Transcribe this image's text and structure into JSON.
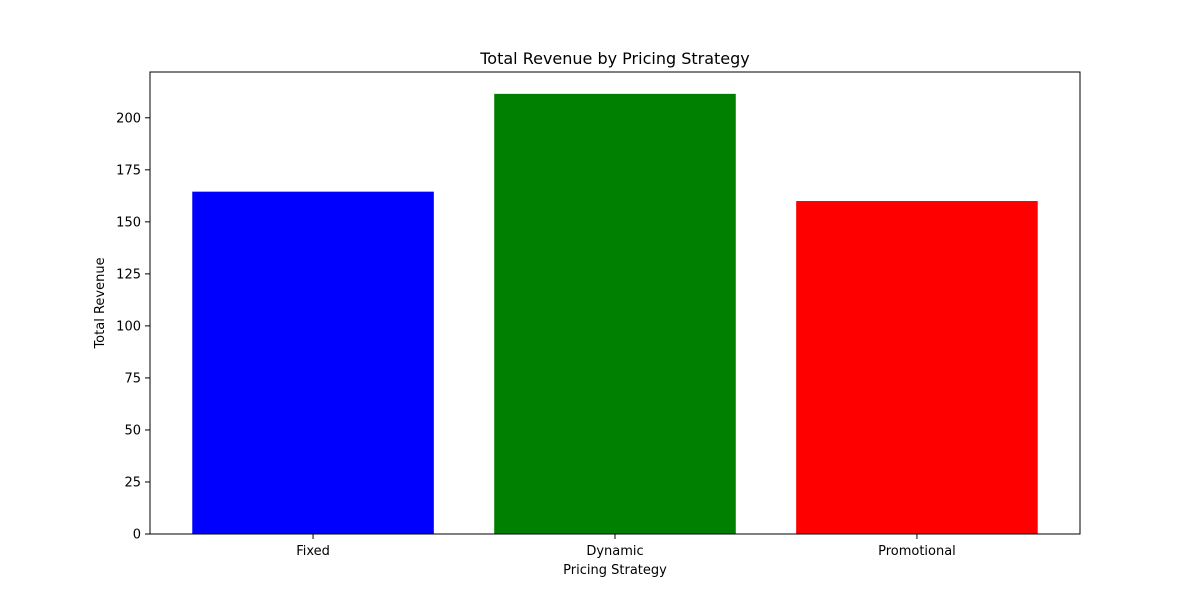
{
  "chart_data": {
    "type": "bar",
    "title": "Total Revenue by Pricing Strategy",
    "xlabel": "Pricing Strategy",
    "ylabel": "Total Revenue",
    "categories": [
      "Fixed",
      "Dynamic",
      "Promotional"
    ],
    "values": [
      164.5,
      211.5,
      160.0
    ],
    "colors": [
      "#0000ff",
      "#008000",
      "#ff0000"
    ],
    "ylim": [
      0,
      222
    ],
    "yticks": [
      0,
      25,
      50,
      75,
      100,
      125,
      150,
      175,
      200
    ],
    "grid": false,
    "legend": "none"
  }
}
